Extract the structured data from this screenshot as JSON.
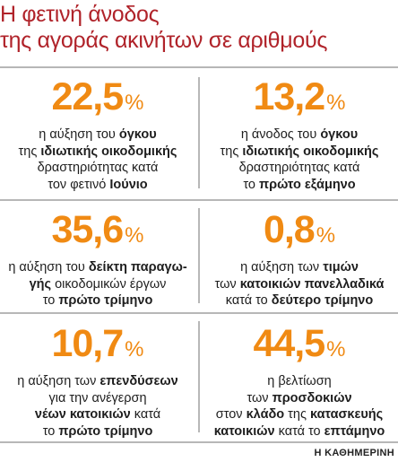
{
  "title": {
    "line1": "Η φετινή άνοδος",
    "line2": "της αγοράς ακινήτων σε αριθμούς"
  },
  "stats": [
    {
      "value": "22,5",
      "unit": "%",
      "lines": [
        [
          {
            "t": "η αύξηση του ",
            "b": false
          },
          {
            "t": "όγκου",
            "b": true
          }
        ],
        [
          {
            "t": "της ",
            "b": false
          },
          {
            "t": "ιδιωτικής οικοδομικής",
            "b": true
          }
        ],
        [
          {
            "t": "δραστηριότητας κατά",
            "b": false
          }
        ],
        [
          {
            "t": "τον φετινό ",
            "b": false
          },
          {
            "t": "Ιούνιο",
            "b": true
          }
        ]
      ]
    },
    {
      "value": "13,2",
      "unit": "%",
      "lines": [
        [
          {
            "t": "η άνοδος του ",
            "b": false
          },
          {
            "t": "όγκου",
            "b": true
          }
        ],
        [
          {
            "t": "της ",
            "b": false
          },
          {
            "t": "ιδιωτικής οικοδομικής",
            "b": true
          }
        ],
        [
          {
            "t": "δραστηριότητας κατά",
            "b": false
          }
        ],
        [
          {
            "t": "το ",
            "b": false
          },
          {
            "t": "πρώτο εξάμηνο",
            "b": true
          }
        ]
      ]
    },
    {
      "value": "35,6",
      "unit": "%",
      "lines": [
        [
          {
            "t": "η αύξηση του ",
            "b": false
          },
          {
            "t": "δείκτη παραγω-",
            "b": true
          }
        ],
        [
          {
            "t": "γής",
            "b": true
          },
          {
            "t": " οικοδομικών έργων",
            "b": false
          }
        ],
        [
          {
            "t": "το ",
            "b": false
          },
          {
            "t": "πρώτο τρίμηνο",
            "b": true
          }
        ]
      ]
    },
    {
      "value": "0,8",
      "unit": "%",
      "lines": [
        [
          {
            "t": "η αύξηση των ",
            "b": false
          },
          {
            "t": "τιμών",
            "b": true
          }
        ],
        [
          {
            "t": "των ",
            "b": false
          },
          {
            "t": "κατοικιών πανελλαδικά",
            "b": true
          }
        ],
        [
          {
            "t": "κατά το ",
            "b": false
          },
          {
            "t": "δεύτερο τρίμηνο",
            "b": true
          }
        ]
      ]
    },
    {
      "value": "10,7",
      "unit": "%",
      "lines": [
        [
          {
            "t": "η αύξηση των ",
            "b": false
          },
          {
            "t": "επενδύσεων",
            "b": true
          }
        ],
        [
          {
            "t": "για την ανέγερση",
            "b": false
          }
        ],
        [
          {
            "t": "νέων κατοικιών",
            "b": true
          },
          {
            "t": " κατά",
            "b": false
          }
        ],
        [
          {
            "t": "το ",
            "b": false
          },
          {
            "t": "πρώτο τρίμηνο",
            "b": true
          }
        ]
      ]
    },
    {
      "value": "44,5",
      "unit": "%",
      "lines": [
        [
          {
            "t": "η βελτίωση",
            "b": false
          }
        ],
        [
          {
            "t": "των ",
            "b": false
          },
          {
            "t": "προσδοκιών",
            "b": true
          }
        ],
        [
          {
            "t": "στον ",
            "b": false
          },
          {
            "t": "κλάδο",
            "b": true
          },
          {
            "t": " της ",
            "b": false
          },
          {
            "t": "κατασκευής",
            "b": true
          }
        ],
        [
          {
            "t": "κατοικιών",
            "b": true
          },
          {
            "t": " κατά το ",
            "b": false
          },
          {
            "t": "επτάμηνο",
            "b": true
          }
        ]
      ]
    }
  ],
  "source": "Η ΚΑΘΗΜΕΡΙΝΗ",
  "colors": {
    "title": "#b0232a",
    "stat": "#f08a13",
    "divider": "#b7b7b7"
  }
}
